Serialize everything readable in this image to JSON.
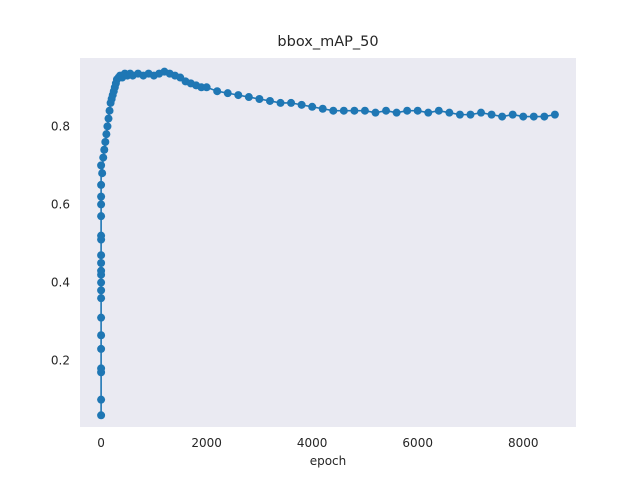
{
  "chart_data": {
    "type": "line",
    "title": "bbox_mAP_50",
    "xlabel": "epoch",
    "ylabel": "",
    "xlim": [
      -400,
      9000
    ],
    "ylim": [
      0.03,
      0.975
    ],
    "xticks": [
      0,
      2000,
      4000,
      6000,
      8000
    ],
    "yticks": [
      0.2,
      0.4,
      0.6,
      0.8
    ],
    "xtick_labels": [
      "0",
      "2000",
      "4000",
      "6000",
      "8000"
    ],
    "ytick_labels": [
      "0.2",
      "0.4",
      "0.6",
      "0.8"
    ],
    "grid": false,
    "legend": "none",
    "marker": "circle",
    "colors": {
      "series": "#1f77b4",
      "axes_bg": "#eaeaf2"
    },
    "series": [
      {
        "x": [
          0,
          0,
          0,
          0,
          0,
          0,
          0,
          0,
          0,
          0,
          0,
          0,
          0,
          0,
          0,
          0,
          0,
          0,
          0,
          0,
          0,
          20,
          40,
          60,
          80,
          100,
          120,
          140,
          160,
          180,
          200,
          220,
          240,
          260,
          280,
          300,
          330,
          360,
          400,
          450,
          500,
          550,
          600,
          700,
          800,
          900,
          1000,
          1100,
          1200,
          1300,
          1400,
          1500,
          1600,
          1700,
          1800,
          1900,
          2000,
          2200,
          2400,
          2600,
          2800,
          3000,
          3200,
          3400,
          3600,
          3800,
          4000,
          4200,
          4400,
          4600,
          4800,
          5000,
          5200,
          5400,
          5600,
          5800,
          6000,
          6200,
          6400,
          6600,
          6800,
          7000,
          7200,
          7400,
          7600,
          7800,
          8000,
          8200,
          8400,
          8600
        ],
        "y": [
          0.06,
          0.1,
          0.17,
          0.18,
          0.23,
          0.265,
          0.31,
          0.36,
          0.38,
          0.4,
          0.42,
          0.43,
          0.45,
          0.47,
          0.51,
          0.52,
          0.57,
          0.6,
          0.62,
          0.65,
          0.7,
          0.68,
          0.72,
          0.74,
          0.76,
          0.78,
          0.8,
          0.82,
          0.84,
          0.86,
          0.87,
          0.88,
          0.89,
          0.9,
          0.91,
          0.92,
          0.925,
          0.93,
          0.925,
          0.935,
          0.93,
          0.935,
          0.93,
          0.935,
          0.93,
          0.935,
          0.93,
          0.935,
          0.94,
          0.935,
          0.93,
          0.925,
          0.915,
          0.91,
          0.905,
          0.9,
          0.9,
          0.89,
          0.885,
          0.88,
          0.875,
          0.87,
          0.865,
          0.86,
          0.86,
          0.855,
          0.85,
          0.845,
          0.84,
          0.84,
          0.84,
          0.84,
          0.835,
          0.84,
          0.835,
          0.84,
          0.84,
          0.835,
          0.84,
          0.835,
          0.83,
          0.83,
          0.835,
          0.83,
          0.825,
          0.83,
          0.825,
          0.825,
          0.825,
          0.83
        ]
      }
    ]
  }
}
